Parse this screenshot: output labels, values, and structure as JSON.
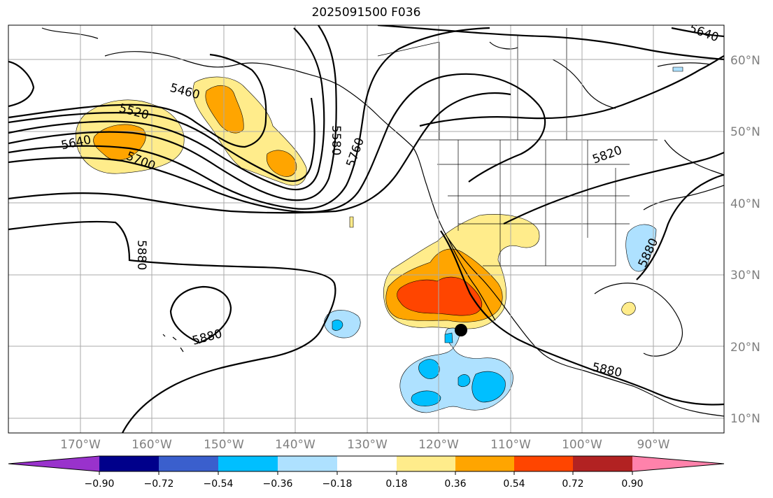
{
  "title": "2025091500 F036",
  "lat_labels": [
    "60°N",
    "50°N",
    "40°N",
    "30°N",
    "20°N",
    "10°N"
  ],
  "lon_labels": [
    "170°W",
    "160°W",
    "150°W",
    "140°W",
    "130°W",
    "120°W",
    "110°W",
    "100°W",
    "90°W"
  ],
  "contour_labels": [
    "5640",
    "5460",
    "5520",
    "5640",
    "5700",
    "5580",
    "5760",
    "5820",
    "5880",
    "5880",
    "5880",
    "5880"
  ],
  "colorbar": {
    "tick_labels": [
      "−0.90",
      "−0.72",
      "−0.54",
      "−0.36",
      "−0.18",
      "0.18",
      "0.36",
      "0.54",
      "0.72",
      "0.90"
    ],
    "colors": [
      "#9932cc",
      "#00008b",
      "#3a5fcd",
      "#00bfff",
      "#aee1ff",
      "#ffffff",
      "#ffec8b",
      "#ffa500",
      "#ff4500",
      "#b22222",
      "#ff82ab"
    ]
  },
  "fill_colors": {
    "pos1": "#ffec8b",
    "pos2": "#ffa500",
    "pos3": "#ff4500",
    "neg1": "#aee1ff",
    "neg2": "#00bfff"
  }
}
